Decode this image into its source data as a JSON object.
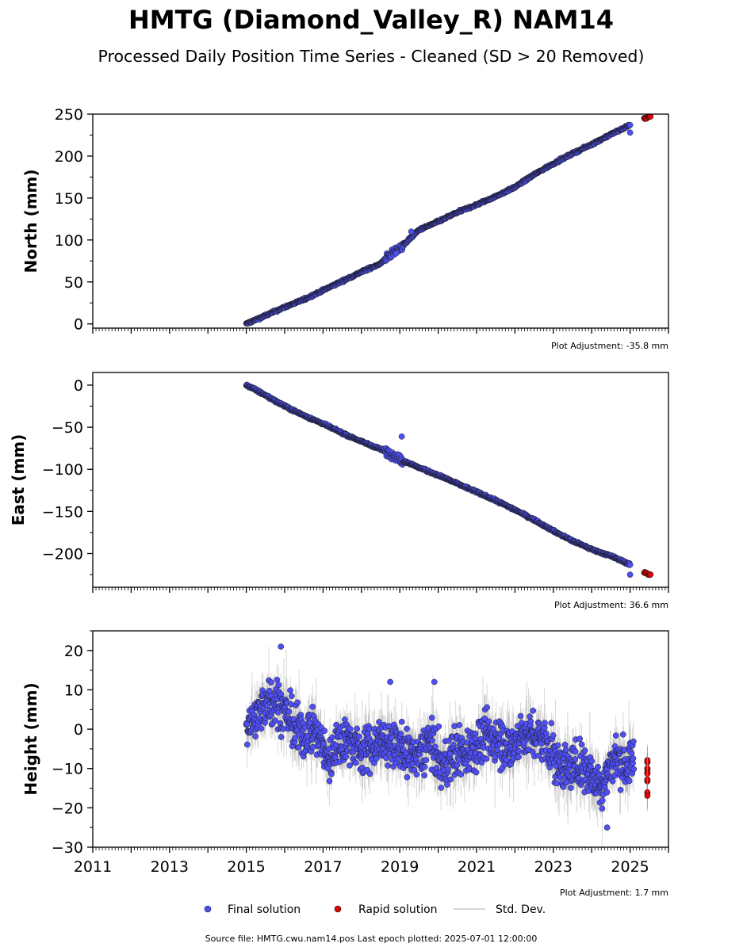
{
  "header": {
    "title": "HMTG (Diamond_Valley_R) NAM14",
    "subtitle": "Processed Daily Position Time Series - Cleaned (SD > 20 Removed)"
  },
  "footer": {
    "source": "Source file: HMTG.cwu.nam14.pos  Last epoch plotted: 2025-07-01 12:00:00"
  },
  "legend": {
    "final_label": "Final solution",
    "rapid_label": "Rapid solution",
    "std_label": "Std. Dev."
  },
  "colors": {
    "final": "#4f4ff5",
    "rapid": "#e00000",
    "std": "#8c8c8c",
    "marker_edge": "#1a1a1a"
  },
  "chart_data": [
    {
      "type": "scatter",
      "ylabel": "North (mm)",
      "ylim": [
        -5,
        250
      ],
      "yticks": [
        0,
        50,
        100,
        150,
        200,
        250
      ],
      "ytick_labels": [
        "0",
        "50",
        "100",
        "150",
        "200",
        "250"
      ],
      "xlim": [
        2011.0,
        2026.0
      ],
      "adjustment": "Plot Adjustment: -35.8 mm",
      "series": [
        {
          "name": "Final solution",
          "x": [
            2015.0,
            2015.5,
            2016.0,
            2016.5,
            2017.0,
            2017.5,
            2018.0,
            2018.5,
            2018.8,
            2019.0,
            2019.5,
            2020.0,
            2020.5,
            2021.0,
            2021.5,
            2022.0,
            2022.5,
            2023.0,
            2023.5,
            2024.0,
            2024.5,
            2025.0
          ],
          "y": [
            0,
            10,
            20,
            29,
            40,
            51,
            62,
            72,
            84,
            90,
            112,
            122,
            133,
            142,
            152,
            163,
            178,
            191,
            203,
            214,
            226,
            237
          ]
        },
        {
          "name": "Rapid solution",
          "x": [
            2025.4,
            2025.5
          ],
          "y": [
            245,
            247
          ]
        }
      ],
      "outliers": [
        {
          "x": 2018.9,
          "y": 84
        },
        {
          "x": 2019.3,
          "y": 110
        },
        {
          "x": 2025.0,
          "y": 228
        }
      ]
    },
    {
      "type": "scatter",
      "ylabel": "East (mm)",
      "ylim": [
        -240,
        15
      ],
      "yticks": [
        0,
        -50,
        -100,
        -150,
        -200
      ],
      "ytick_labels": [
        "0",
        "−50",
        "−100",
        "−150",
        "−200"
      ],
      "xlim": [
        2011.0,
        2026.0
      ],
      "adjustment": "Plot Adjustment: 36.6 mm",
      "series": [
        {
          "name": "Final solution",
          "x": [
            2015.0,
            2015.5,
            2016.0,
            2016.5,
            2017.0,
            2017.5,
            2018.0,
            2018.5,
            2018.8,
            2019.0,
            2019.5,
            2020.0,
            2020.5,
            2021.0,
            2021.5,
            2022.0,
            2022.5,
            2023.0,
            2023.5,
            2024.0,
            2024.5,
            2025.0
          ],
          "y": [
            0,
            -12,
            -25,
            -36,
            -46,
            -57,
            -67,
            -76,
            -82,
            -88,
            -98,
            -107,
            -117,
            -127,
            -137,
            -148,
            -160,
            -173,
            -185,
            -195,
            -203,
            -213
          ]
        },
        {
          "name": "Rapid solution",
          "x": [
            2025.4,
            2025.5
          ],
          "y": [
            -223,
            -225
          ]
        }
      ],
      "outliers": [
        {
          "x": 2019.05,
          "y": -61
        },
        {
          "x": 2025.0,
          "y": -225
        }
      ]
    },
    {
      "type": "scatter",
      "ylabel": "Height (mm)",
      "ylim": [
        -30,
        25
      ],
      "yticks": [
        20,
        10,
        0,
        -10,
        -20,
        -30
      ],
      "ytick_labels": [
        "20",
        "10",
        "0",
        "−10",
        "−20",
        "−30"
      ],
      "xlim": [
        2011.0,
        2026.0
      ],
      "xticks": [
        2011,
        2013,
        2015,
        2017,
        2019,
        2021,
        2023,
        2025
      ],
      "xtick_labels": [
        "2011",
        "2013",
        "2015",
        "2017",
        "2019",
        "2021",
        "2023",
        "2025"
      ],
      "adjustment": "Plot Adjustment: 1.7 mm",
      "series": [
        {
          "name": "Final solution",
          "x": [
            2015.0,
            2015.3,
            2015.6,
            2015.9,
            2016.2,
            2016.5,
            2016.8,
            2017.1,
            2017.4,
            2017.7,
            2018.0,
            2018.3,
            2018.6,
            2018.9,
            2019.2,
            2019.5,
            2019.8,
            2020.1,
            2020.4,
            2020.7,
            2021.0,
            2021.3,
            2021.6,
            2021.9,
            2022.2,
            2022.5,
            2022.8,
            2023.1,
            2023.4,
            2023.7,
            2024.0,
            2024.3,
            2024.6,
            2024.9,
            2025.1
          ],
          "y": [
            1,
            3,
            8,
            6,
            1,
            -2,
            0,
            -8,
            -4,
            -2,
            -6,
            -4,
            -3,
            -5,
            -6,
            -7,
            -3,
            -10,
            -5,
            -6,
            -4,
            -2,
            -3,
            -5,
            -1,
            -2,
            -3,
            -8,
            -10,
            -9,
            -12,
            -14,
            -7,
            -9,
            -8
          ]
        },
        {
          "name": "Rapid solution",
          "x": [
            2025.45,
            2025.45,
            2025.45,
            2025.45,
            2025.45
          ],
          "y": [
            -8,
            -10,
            -11,
            -13,
            -16
          ]
        }
      ],
      "outliers": [
        {
          "x": 2015.9,
          "y": 21
        },
        {
          "x": 2018.75,
          "y": 12
        },
        {
          "x": 2019.9,
          "y": 12
        },
        {
          "x": 2024.4,
          "y": -25
        }
      ]
    }
  ]
}
